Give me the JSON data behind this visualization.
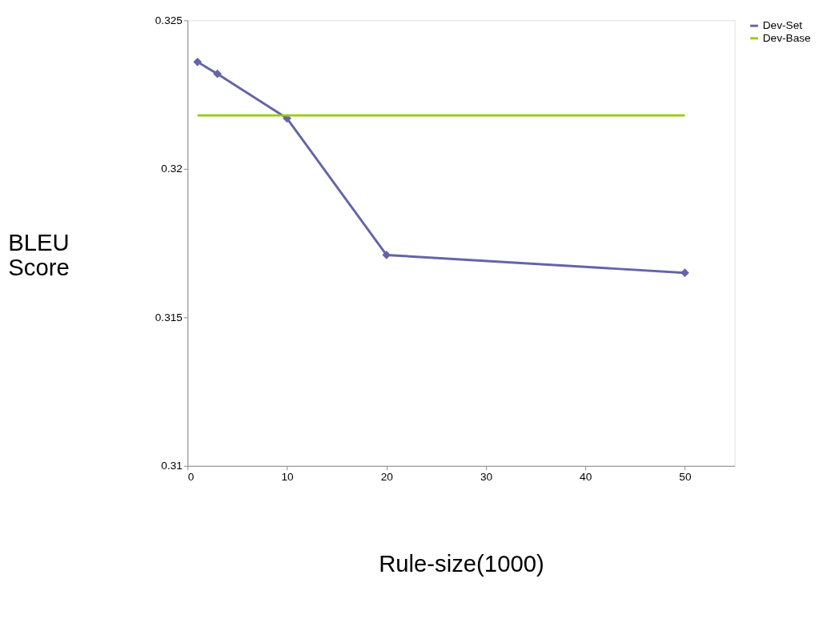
{
  "chart_data": {
    "type": "line",
    "xlabel": "Rule-size(1000)",
    "ylabel": "BLEU Score",
    "xlim": [
      0,
      55
    ],
    "xticks": [
      0,
      10,
      20,
      30,
      40,
      50
    ],
    "ylim": [
      0.31,
      0.325
    ],
    "yticks": [
      0.31,
      0.315,
      0.32,
      0.325
    ],
    "grid": false,
    "legend": "right",
    "line_style": "solid",
    "series": [
      {
        "name": "Dev-Set",
        "color": "#6464a8",
        "marker": "diamond",
        "x": [
          1,
          3,
          10,
          20,
          50
        ],
        "values": [
          0.3236,
          0.3232,
          0.3217,
          0.3171,
          0.3165
        ]
      },
      {
        "name": "Dev-Base",
        "color": "#99cc00",
        "marker": "none",
        "x": [
          1,
          50
        ],
        "values": [
          0.3218,
          0.3218
        ]
      }
    ]
  }
}
